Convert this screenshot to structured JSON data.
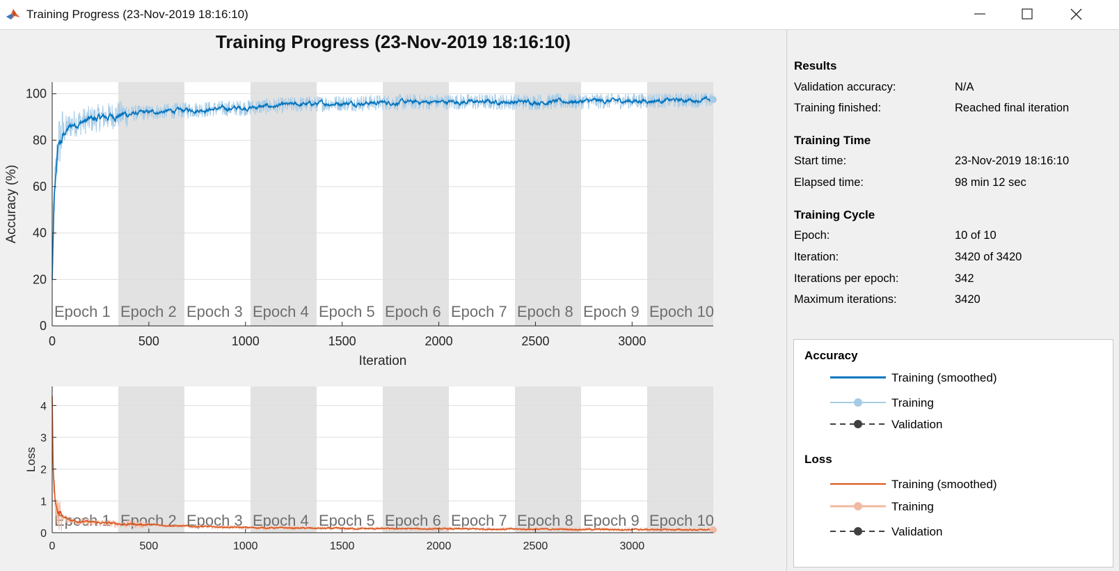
{
  "window": {
    "title": "Training Progress (23-Nov-2019 18:16:10)",
    "controls": {
      "minimize": "minimize",
      "maximize": "maximize",
      "close": "close"
    }
  },
  "figure_title": "Training Progress (23-Nov-2019 18:16:10)",
  "results": {
    "results_heading": "Results",
    "validation_accuracy_label": "Validation accuracy:",
    "validation_accuracy_value": "N/A",
    "training_finished_label": "Training finished:",
    "training_finished_value": "Reached final iteration",
    "time_heading": "Training Time",
    "start_time_label": "Start time:",
    "start_time_value": "23-Nov-2019 18:16:10",
    "elapsed_time_label": "Elapsed time:",
    "elapsed_time_value": "98 min 12 sec",
    "cycle_heading": "Training Cycle",
    "epoch_label": "Epoch:",
    "epoch_value": "10 of 10",
    "iteration_label": "Iteration:",
    "iteration_value": "3420 of 3420",
    "iter_per_epoch_label": "Iterations per epoch:",
    "iter_per_epoch_value": "342",
    "max_iter_label": "Maximum iterations:",
    "max_iter_value": "3420"
  },
  "legend": {
    "accuracy_heading": "Accuracy",
    "accuracy_items": [
      "Training (smoothed)",
      "Training",
      "Validation"
    ],
    "loss_heading": "Loss",
    "loss_items": [
      "Training (smoothed)",
      "Training",
      "Validation"
    ]
  },
  "colors": {
    "accuracy_smoothed": "#0072bd",
    "accuracy_raw": "#a6cbe6",
    "loss_smoothed": "#d95319",
    "loss_raw": "#f1b9a3",
    "validation": "#404040",
    "epoch_shade": "#e2e2e2",
    "grid": "#dedede"
  },
  "chart_data": [
    {
      "type": "line",
      "ylabel": "Accuracy (%)",
      "xlabel": "Iteration",
      "xlim": [
        0,
        3420
      ],
      "ylim": [
        0,
        105
      ],
      "xticks": [
        0,
        500,
        1000,
        1500,
        2000,
        2500,
        3000
      ],
      "yticks": [
        0,
        20,
        40,
        60,
        80,
        100
      ],
      "grid": true,
      "epochs_per_band": 342,
      "epoch_labels": [
        "Epoch 1",
        "Epoch 2",
        "Epoch 3",
        "Epoch 4",
        "Epoch 5",
        "Epoch 6",
        "Epoch 7",
        "Epoch 8",
        "Epoch 9",
        "Epoch 10"
      ],
      "series": [
        {
          "name": "Training (smoothed)",
          "x": [
            0,
            10,
            30,
            60,
            100,
            200,
            340,
            500,
            700,
            1000,
            1300,
            1500,
            2000,
            2500,
            3000,
            3420
          ],
          "values": [
            20,
            55,
            78,
            84,
            87,
            89,
            91,
            92,
            93,
            94,
            95.5,
            96,
            96.5,
            96.5,
            97,
            97.5
          ]
        }
      ]
    },
    {
      "type": "line",
      "ylabel": "Loss",
      "xlim": [
        0,
        3420
      ],
      "ylim": [
        0,
        4.6
      ],
      "xticks": [
        0,
        500,
        1000,
        1500,
        2000,
        2500,
        3000
      ],
      "yticks": [
        0,
        1,
        2,
        3,
        4
      ],
      "grid": true,
      "epochs_per_band": 342,
      "epoch_labels": [
        "Epoch 1",
        "Epoch 2",
        "Epoch 3",
        "Epoch 4",
        "Epoch 5",
        "Epoch 6",
        "Epoch 7",
        "Epoch 8",
        "Epoch 9",
        "Epoch 10"
      ],
      "series": [
        {
          "name": "Training (smoothed)",
          "x": [
            0,
            5,
            15,
            30,
            60,
            100,
            200,
            340,
            500,
            700,
            1000,
            1500,
            2000,
            2500,
            3000,
            3420
          ],
          "values": [
            4.3,
            2.0,
            1.0,
            0.6,
            0.45,
            0.38,
            0.32,
            0.28,
            0.25,
            0.2,
            0.16,
            0.13,
            0.12,
            0.11,
            0.1,
            0.09
          ]
        }
      ]
    }
  ]
}
